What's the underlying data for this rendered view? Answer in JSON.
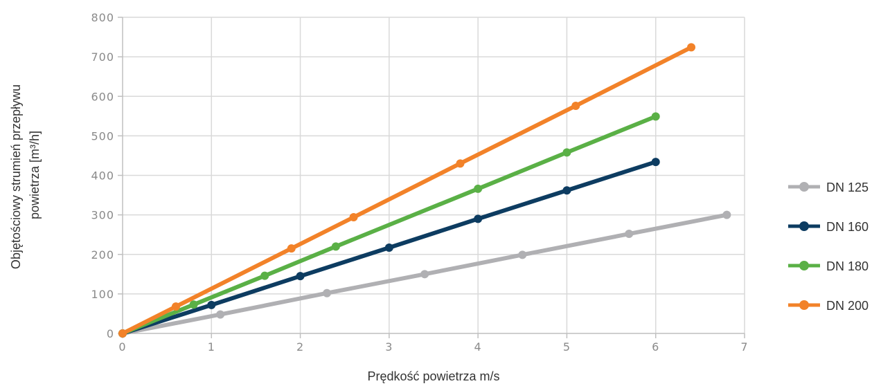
{
  "chart_data": {
    "type": "line",
    "xlabel": "Prędkość powietrza m/s",
    "ylabel_lines": [
      "Objętościowy strumień przepływu",
      "powietrza [m³/h]"
    ],
    "xlim": [
      0,
      7
    ],
    "ylim": [
      0,
      800
    ],
    "x_ticks": [
      0,
      1,
      2,
      3,
      4,
      5,
      6,
      7
    ],
    "y_ticks": [
      0,
      100,
      200,
      300,
      400,
      500,
      600,
      700,
      800
    ],
    "grid": true,
    "legend_position": "right",
    "series": [
      {
        "name": "DN 125",
        "color": "#b0b0b3",
        "points": [
          [
            0,
            0
          ],
          [
            1.1,
            48
          ],
          [
            2.3,
            102
          ],
          [
            3.4,
            150
          ],
          [
            4.5,
            199
          ],
          [
            5.7,
            252
          ],
          [
            6.8,
            300
          ]
        ]
      },
      {
        "name": "DN 160",
        "color": "#0d3c61",
        "points": [
          [
            0,
            0
          ],
          [
            1.0,
            72
          ],
          [
            2.0,
            145
          ],
          [
            3.0,
            217
          ],
          [
            4.0,
            290
          ],
          [
            5.0,
            362
          ],
          [
            6.0,
            434
          ]
        ]
      },
      {
        "name": "DN 180",
        "color": "#5ab046",
        "points": [
          [
            0,
            0
          ],
          [
            0.8,
            73
          ],
          [
            1.6,
            146
          ],
          [
            2.4,
            220
          ],
          [
            4.0,
            366
          ],
          [
            5.0,
            458
          ],
          [
            6.0,
            549
          ]
        ]
      },
      {
        "name": "DN 200",
        "color": "#f28229",
        "points": [
          [
            0,
            0
          ],
          [
            0.6,
            68
          ],
          [
            1.9,
            215
          ],
          [
            2.6,
            294
          ],
          [
            3.8,
            430
          ],
          [
            5.1,
            576
          ],
          [
            6.4,
            724
          ]
        ]
      }
    ]
  }
}
